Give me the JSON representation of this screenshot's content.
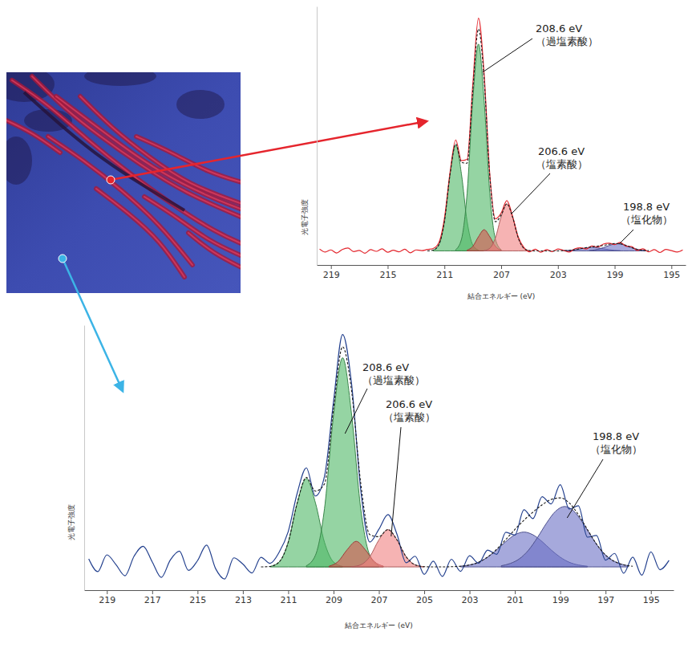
{
  "chart_data": [
    {
      "type": "line",
      "x_label": "結合エネルギー (eV)",
      "y_label": "光電子強度",
      "xlim": [
        220,
        194
      ],
      "ylim": [
        -6,
        104
      ],
      "xticks": [
        219,
        215,
        211,
        207,
        203,
        199,
        195
      ],
      "tick_labels": "x",
      "grid": false,
      "x": [
        219.8,
        219.4,
        219.0,
        218.6,
        218.2,
        217.8,
        217.4,
        217.0,
        216.6,
        216.2,
        215.8,
        215.4,
        215.0,
        214.6,
        214.2,
        213.8,
        213.4,
        213.0,
        212.6,
        212.2,
        211.8,
        211.4,
        211.0,
        210.6,
        210.2,
        209.8,
        209.4,
        209.0,
        208.6,
        208.2,
        207.8,
        207.4,
        207.0,
        206.6,
        206.2,
        205.8,
        205.4,
        205.0,
        204.6,
        204.2,
        203.8,
        203.4,
        203.0,
        202.6,
        202.2,
        201.8,
        201.4,
        201.0,
        200.6,
        200.2,
        199.8,
        199.4,
        199.0,
        198.6,
        198.2,
        197.8,
        197.4,
        197.0,
        196.6,
        196.2,
        195.8,
        195.4,
        195.0,
        194.6,
        194.2
      ],
      "series": [
        {
          "type": "line",
          "line_style": "solid",
          "color": "#e3262d",
          "values": [
            0.8,
            -0.5,
            0.4,
            -0.9,
            0.6,
            1.2,
            -0.3,
            0.2,
            -1.0,
            0.5,
            -0.2,
            0.9,
            -0.6,
            0.3,
            -0.4,
            0.7,
            -0.8,
            0.4,
            0.1,
            0.6,
            1.0,
            3.4,
            13.8,
            33.5,
            47.2,
            38.4,
            38.9,
            70.6,
            99.0,
            75.1,
            32.4,
            13.6,
            16.1,
            21.4,
            14.8,
            6.0,
            1.5,
            -0.4,
            0.7,
            -0.6,
            0.5,
            -0.3,
            0.8,
            0.2,
            -0.5,
            0.9,
            1.3,
            0.8,
            2.1,
            1.6,
            2.9,
            3.3,
            2.7,
            3.6,
            2.0,
            1.8,
            0.2,
            0.9,
            -0.4,
            0.5,
            -0.7,
            0.6,
            0.1,
            -0.5,
            0.4
          ]
        },
        {
          "type": "line",
          "line_style": "dashed",
          "color": "#1a1a1a",
          "x": [
            212.2,
            211.8,
            211.4,
            211.0,
            210.6,
            210.2,
            209.8,
            209.4,
            209.0,
            208.6,
            208.2,
            207.8,
            207.4,
            207.0,
            206.6,
            206.2,
            205.8,
            205.4,
            205.0,
            204.6,
            204.2,
            203.8,
            203.4,
            203.0,
            202.6,
            202.2,
            201.8,
            201.4,
            201.0,
            200.6,
            200.2,
            199.8,
            199.4,
            199.0,
            198.6,
            198.2,
            197.8,
            197.4,
            197.0,
            196.6
          ],
          "values": [
            0,
            0.3,
            2.5,
            12.5,
            32.7,
            45.5,
            37.6,
            37.3,
            68.3,
            94.4,
            73.0,
            31.7,
            12.4,
            15.3,
            20.0,
            14.5,
            5.6,
            1.1,
            0.1,
            0,
            0,
            0,
            0,
            0,
            0.1,
            0.2,
            0.5,
            0.9,
            1.4,
            1.7,
            2.0,
            2.3,
            2.8,
            3.1,
            3.0,
            2.3,
            1.4,
            0.6,
            0.2,
            0.1
          ]
        },
        {
          "type": "area",
          "color": "#4fb866",
          "x": [
            211.8,
            211.4,
            211.0,
            210.6,
            210.2,
            209.8,
            209.4,
            209.0,
            208.6
          ],
          "values": [
            0.3,
            2.5,
            12.5,
            32.7,
            45,
            32.7,
            12.5,
            2.5,
            0.3
          ]
        },
        {
          "type": "area",
          "color": "#4fb866",
          "x": [
            210.2,
            209.8,
            209.4,
            209.0,
            208.6,
            208.2,
            207.8,
            207.4,
            207.0
          ],
          "values": [
            0.5,
            4.9,
            24.5,
            63.9,
            88,
            63.9,
            24.5,
            4.9,
            0.5
          ]
        },
        {
          "type": "area",
          "color": "#d9534f",
          "x": [
            209.4,
            209.0,
            208.6,
            208.2,
            207.8,
            207.4,
            207.0
          ],
          "values": [
            0.3,
            1.9,
            6.0,
            9,
            6.0,
            1.9,
            0.3
          ]
        },
        {
          "type": "area",
          "color": "#f08080",
          "x": [
            208.2,
            207.8,
            207.4,
            207.0,
            206.6,
            206.2,
            205.8,
            205.4,
            205.0
          ],
          "values": [
            0.1,
            1.1,
            5.6,
            14.5,
            20,
            14.5,
            5.6,
            1.1,
            0.1
          ]
        },
        {
          "type": "area",
          "color": "#6b6fc4",
          "x": [
            202.6,
            202.2,
            201.8,
            201.4,
            201.0,
            200.6,
            200.2,
            199.8,
            199.4,
            199.0,
            198.6
          ],
          "values": [
            0.07,
            0.2,
            0.5,
            0.9,
            1.3,
            1.5,
            1.3,
            0.9,
            0.5,
            0.2,
            0.07
          ]
        },
        {
          "type": "area",
          "color": "#6b6fc4",
          "x": [
            200.8,
            200.4,
            200.0,
            199.6,
            199.2,
            198.8,
            198.4,
            198.0,
            197.6,
            197.2,
            196.8
          ],
          "values": [
            0.13,
            0.41,
            0.98,
            1.82,
            2.65,
            3,
            2.65,
            1.82,
            0.98,
            0.41,
            0.13
          ]
        }
      ],
      "annotations": [
        {
          "text": "208.6 eV",
          "note": "（過塩素酸）",
          "x": 208.6
        },
        {
          "text": "206.6 eV",
          "note": "（塩素酸）",
          "x": 206.6
        },
        {
          "text": "198.8 eV",
          "note": "（塩化物）",
          "x": 198.8
        }
      ]
    },
    {
      "type": "line",
      "x_label": "結合エネルギー (eV)",
      "y_label": "光電子強度",
      "xlim": [
        220,
        194
      ],
      "ylim": [
        -10,
        104
      ],
      "xticks": [
        219,
        217,
        215,
        213,
        211,
        209,
        207,
        205,
        203,
        201,
        199,
        197,
        195
      ],
      "tick_labels": "x",
      "grid": false,
      "x": [
        219.8,
        219.4,
        219.0,
        218.6,
        218.2,
        217.8,
        217.4,
        217.0,
        216.6,
        216.2,
        215.8,
        215.4,
        215.0,
        214.6,
        214.2,
        213.8,
        213.4,
        213.0,
        212.6,
        212.2,
        211.8,
        211.4,
        211.0,
        210.6,
        210.2,
        209.8,
        209.4,
        209.0,
        208.6,
        208.2,
        207.8,
        207.4,
        207.0,
        206.6,
        206.2,
        205.8,
        205.4,
        205.0,
        204.6,
        204.2,
        203.8,
        203.4,
        203.0,
        202.6,
        202.2,
        201.8,
        201.4,
        201.0,
        200.6,
        200.2,
        199.8,
        199.4,
        199.0,
        198.6,
        198.2,
        197.8,
        197.4,
        197.0,
        196.6,
        196.2,
        195.8,
        195.4,
        195.0,
        194.6,
        194.2
      ],
      "series": [
        {
          "type": "line",
          "line_style": "solid",
          "color": "#23408e",
          "values": [
            3.5,
            -2.0,
            5.2,
            1.0,
            -3.8,
            4.6,
            8.9,
            2.2,
            -4.5,
            3.0,
            6.8,
            -1.5,
            2.7,
            9.4,
            -0.8,
            -5.2,
            3.9,
            1.2,
            -2.6,
            4.1,
            1.5,
            6.3,
            15.2,
            31.8,
            42.6,
            30.5,
            38.9,
            71.2,
            100.0,
            78.4,
            33.1,
            10.7,
            16.2,
            22.5,
            14.0,
            1.8,
            4.6,
            -3.2,
            2.5,
            -4.1,
            3.3,
            -1.9,
            4.8,
            1.6,
            7.2,
            5.4,
            14.9,
            13.7,
            24.6,
            20.8,
            30.2,
            27.1,
            35.4,
            24.9,
            26.3,
            12.8,
            13.5,
            2.9,
            5.8,
            -2.7,
            4.2,
            -3.6,
            6.5,
            -1.2,
            2.8
          ]
        },
        {
          "type": "line",
          "line_style": "dashed",
          "color": "#1a1a1a",
          "x": [
            212.2,
            211.8,
            211.4,
            211.0,
            210.6,
            210.2,
            209.8,
            209.4,
            209.0,
            208.6,
            208.2,
            207.8,
            207.4,
            207.0,
            206.6,
            206.2,
            205.8,
            205.4,
            205.0,
            204.6,
            204.2,
            203.8,
            203.4,
            203.0,
            202.6,
            202.2,
            201.8,
            201.4,
            201.0,
            200.6,
            200.2,
            199.8,
            199.4,
            199.0,
            198.6,
            198.2,
            197.8,
            197.4,
            197.0,
            196.6,
            196.2,
            195.8
          ],
          "values": [
            0,
            0.2,
            2.1,
            10.6,
            27.6,
            38.5,
            32.6,
            35.7,
            68.3,
            94.7,
            75.4,
            35.9,
            13.9,
            13.0,
            16.1,
            11.6,
            4.4,
            0.9,
            0.1,
            0.0,
            0.0,
            0.1,
            0.3,
            0.8,
            2.0,
            4.3,
            7.6,
            11.8,
            16.1,
            20.1,
            23.6,
            26.7,
            29.0,
            29.7,
            27.5,
            22.5,
            16.1,
            9.8,
            5.1,
            2.3,
            0.9,
            0.3
          ]
        },
        {
          "type": "area",
          "color": "#4fb866",
          "x": [
            211.8,
            211.4,
            211.0,
            210.6,
            210.2,
            209.8,
            209.4,
            209.0,
            208.6
          ],
          "values": [
            0.2,
            2.1,
            10.6,
            27.6,
            38,
            27.6,
            10.6,
            2.1,
            0.2
          ]
        },
        {
          "type": "area",
          "color": "#4fb866",
          "x": [
            210.2,
            209.8,
            209.4,
            209.0,
            208.6,
            208.2,
            207.8,
            207.4,
            207.0
          ],
          "values": [
            0.5,
            5.0,
            25.0,
            65.3,
            90,
            65.3,
            25.0,
            5.0,
            0.5
          ]
        },
        {
          "type": "area",
          "color": "#d9534f",
          "x": [
            209.2,
            208.8,
            208.4,
            208.0,
            207.6,
            207.2,
            206.8
          ],
          "values": [
            0.3,
            2.3,
            7.4,
            11,
            7.4,
            2.3,
            0.3
          ]
        },
        {
          "type": "area",
          "color": "#f08080",
          "x": [
            208.2,
            207.8,
            207.4,
            207.0,
            206.6,
            206.2,
            205.8,
            205.4,
            205.0
          ],
          "values": [
            0.1,
            0.9,
            4.4,
            11.6,
            16,
            11.6,
            4.4,
            0.9,
            0.1
          ]
        },
        {
          "type": "area",
          "color": "#6b6fc4",
          "x": [
            203.4,
            203.0,
            202.6,
            202.2,
            201.8,
            201.4,
            201.0,
            200.6,
            200.2,
            199.8,
            199.4,
            199.0,
            198.6,
            198.2,
            197.8
          ],
          "values": [
            0.3,
            0.84,
            2.0,
            4.2,
            7.3,
            10.9,
            13.8,
            15,
            13.8,
            10.9,
            7.3,
            4.2,
            2.0,
            0.84,
            0.3
          ]
        },
        {
          "type": "area",
          "color": "#6b6fc4",
          "x": [
            201.6,
            201.2,
            200.8,
            200.4,
            200.0,
            199.6,
            199.2,
            198.8,
            198.4,
            198.0,
            197.6,
            197.2,
            196.8,
            196.4,
            196.0
          ],
          "values": [
            0.5,
            1.5,
            3.5,
            7.2,
            12.7,
            18.9,
            24.0,
            26,
            24.0,
            18.9,
            12.7,
            7.2,
            3.5,
            1.5,
            0.5
          ]
        }
      ],
      "annotations": [
        {
          "text": "208.6 eV",
          "note": "（過塩素酸）",
          "x": 208.6
        },
        {
          "text": "206.6 eV",
          "note": "（塩素酸）",
          "x": 206.6
        },
        {
          "text": "198.8 eV",
          "note": "（塩化物）",
          "x": 198.8
        }
      ]
    }
  ]
}
